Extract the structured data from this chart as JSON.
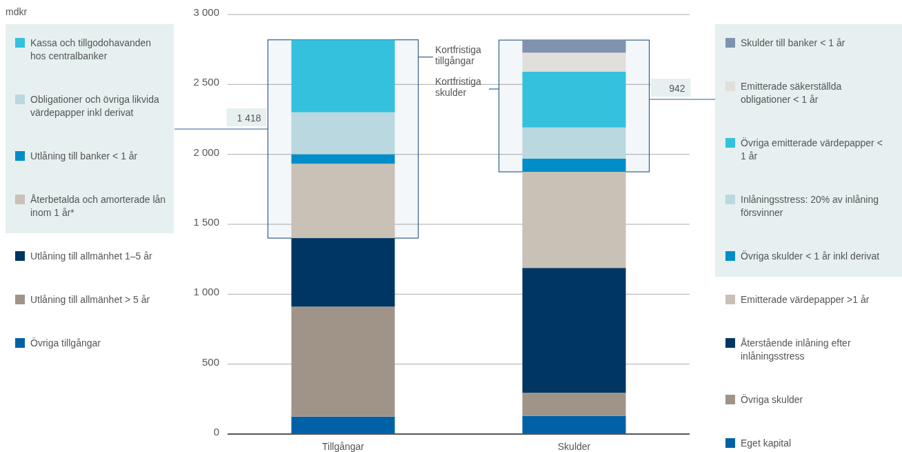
{
  "chart_data": {
    "type": "bar",
    "stacked": true,
    "categories": [
      "Tillgångar",
      "Skulder"
    ],
    "ylim": [
      0,
      3000
    ],
    "yticks": [
      {
        "value": 0,
        "label": "0"
      },
      {
        "value": 500,
        "label": "500"
      },
      {
        "value": 1000,
        "label": "1 000"
      },
      {
        "value": 1500,
        "label": "1 500"
      },
      {
        "value": 2000,
        "label": "2 000"
      },
      {
        "value": 2500,
        "label": "2 500"
      },
      {
        "value": 3000,
        "label": "3 000"
      }
    ],
    "grid": "y",
    "legend": "left",
    "series": [
      {
        "name": "Övriga tillgångar",
        "color": "#0061a6",
        "values": [
          125,
          null
        ]
      },
      {
        "name": "Utlåning till allmänhet > 5 år",
        "color": "#a09488",
        "values": [
          786,
          null
        ]
      },
      {
        "name": "Utlåning till allmänhet 1–5 år",
        "color": "#003662",
        "values": [
          490,
          null
        ]
      },
      {
        "name": "Återbetalda och amorterade lån inom 1 år*",
        "color": "#c9c0b6",
        "values": [
          532,
          null
        ]
      },
      {
        "name": "Utlåning till banker < 1 år",
        "color": "#008dc8",
        "values": [
          68,
          null
        ]
      },
      {
        "name": "Obligationer och övriga likvida värdepapper inkl derivat",
        "color": "#bad8e0",
        "values": [
          300,
          null
        ]
      },
      {
        "name": "Kassa och tillgodohavanden hos centralbanker",
        "color": "#33c1dd",
        "values": [
          518,
          null
        ]
      },
      {
        "name": "Eget kapital",
        "color": "#0061a6",
        "values": [
          null,
          130
        ]
      },
      {
        "name": "Övriga skulder",
        "color": "#a09488",
        "values": [
          null,
          165
        ]
      },
      {
        "name": "Återstående inlåning efter inlåningsstress",
        "color": "#003662",
        "values": [
          null,
          893
        ]
      },
      {
        "name": "Emitterade värdepapper >1 år",
        "color": "#c9c0b6",
        "values": [
          null,
          687
        ]
      },
      {
        "name": "Övriga skulder < 1 år inkl derivat",
        "color": "#008dc8",
        "values": [
          null,
          95
        ]
      },
      {
        "name": "Inlåningsstress: 20% av inlåning försvinner",
        "color": "#bad8e0",
        "values": [
          null,
          222
        ]
      },
      {
        "name": "Övriga emitterade värdepapper < 1 år",
        "color": "#33c1dd",
        "values": [
          null,
          399
        ]
      },
      {
        "name": "Emitterade säkerställda obligationer < 1 år",
        "color": "#e0dfdb",
        "values": [
          null,
          136
        ]
      },
      {
        "name": "Skulder till banker < 1 år",
        "color": "#7f92b0",
        "values": [
          null,
          90
        ]
      }
    ],
    "bands": [
      {
        "axis": "y",
        "from": 1401,
        "to": 2819,
        "label": "1 418",
        "color": "#2d5f8a"
      },
      {
        "axis": "y",
        "from": 1875,
        "to": 2817,
        "label": "942",
        "color": "#2d5f8a"
      }
    ],
    "annotations": [
      "mdkr",
      "Kortfristiga tillgångar",
      "Kortfristiga skulder"
    ]
  }
}
